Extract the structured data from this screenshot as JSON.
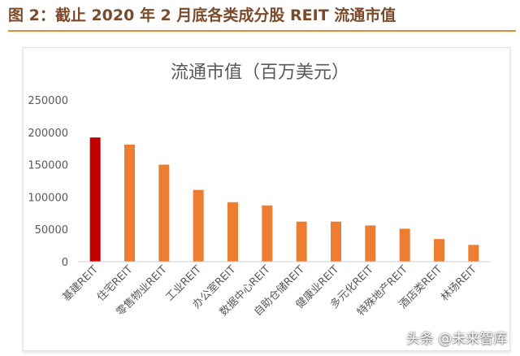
{
  "figure": {
    "title": "图 2：截止 2020 年 2 月底各类成分股 REIT 流通市值"
  },
  "watermark": {
    "text": "头条 @未来智库"
  },
  "colors": {
    "title_text": "#7a4a2a",
    "title_rule": "#e8893a",
    "highlight_bar": "#c00000",
    "bar": "#ed7d31",
    "axis_text": "#595959"
  },
  "chart_data": {
    "type": "bar",
    "title": "流通市值（百万美元）",
    "xlabel": "",
    "ylabel": "",
    "ylim": [
      0,
      250000
    ],
    "yticks": [
      0,
      50000,
      100000,
      150000,
      200000,
      250000
    ],
    "ytick_labels": [
      "0",
      "50000",
      "100000",
      "150000",
      "200000",
      "250000"
    ],
    "grid": false,
    "categories": [
      "基建REIT",
      "住宅REIT",
      "零售物业REIT",
      "工业REIT",
      "办公室REIT",
      "数据中心REIT",
      "自助仓储REIT",
      "健康业REIT",
      "多元化REIT",
      "特殊地产REIT",
      "酒店类REIT",
      "林场REIT"
    ],
    "values": [
      192000,
      181000,
      150000,
      111000,
      92000,
      87000,
      62000,
      62000,
      56000,
      51000,
      35000,
      26000
    ],
    "highlight_index": 0
  }
}
